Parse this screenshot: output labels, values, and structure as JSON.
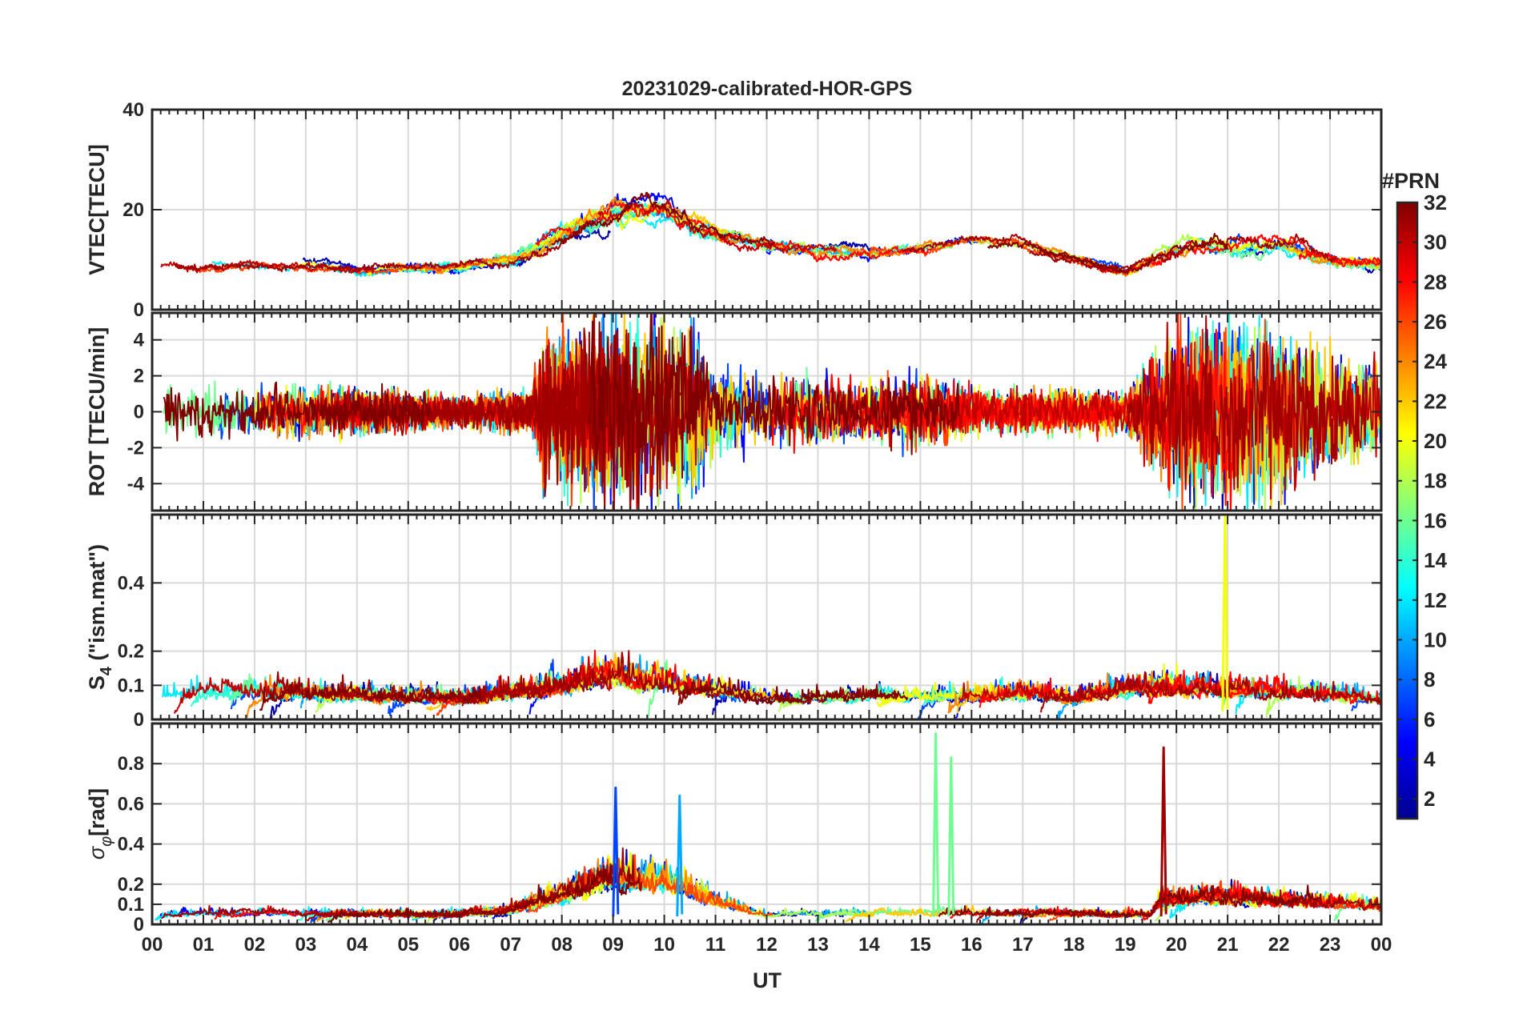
{
  "chart_data": {
    "type": "line",
    "title": "20231029-calibrated-HOR-GPS",
    "xlabel": "UT",
    "x_range_hours": [
      0,
      24
    ],
    "x_tick_labels": [
      "00",
      "01",
      "02",
      "03",
      "04",
      "05",
      "06",
      "07",
      "08",
      "09",
      "10",
      "11",
      "12",
      "13",
      "14",
      "15",
      "16",
      "17",
      "18",
      "19",
      "20",
      "21",
      "22",
      "23",
      "00"
    ],
    "grid": true,
    "colorbar": {
      "label": "#PRN",
      "range": [
        1,
        32
      ],
      "tick_values": [
        2,
        4,
        6,
        8,
        10,
        12,
        14,
        16,
        18,
        20,
        22,
        24,
        26,
        28,
        30,
        32
      ],
      "tick_labels": [
        "2",
        "4",
        "6",
        "8",
        "10",
        "12",
        "14",
        "16",
        "18",
        "20",
        "22",
        "24",
        "26",
        "28",
        "30",
        "32"
      ],
      "colormap": "jet",
      "location": "right"
    },
    "series_color_prns": [
      2,
      5,
      7,
      10,
      12,
      14,
      16,
      18,
      20,
      22,
      24,
      26,
      28,
      30,
      31,
      32
    ],
    "panels": [
      {
        "id": "vtec",
        "ylabel": "VTEC[TECU]",
        "ylim": [
          0,
          40
        ],
        "yticks": [
          0,
          20,
          40
        ],
        "ytick_labels": [
          "0",
          "20",
          "40"
        ],
        "activity_profile": {
          "hours": [
            0,
            2,
            4,
            6,
            7,
            8,
            9,
            10,
            11,
            12,
            13,
            14,
            15,
            16,
            17,
            18,
            19,
            20,
            21,
            22,
            23,
            24
          ],
          "mean": [
            8.5,
            9,
            8,
            8.5,
            10,
            15,
            19,
            20,
            15,
            13,
            12,
            11,
            12.5,
            14,
            13,
            10,
            8,
            12,
            13,
            13,
            10,
            9
          ],
          "spread": [
            3,
            3,
            3,
            3,
            4,
            7,
            9,
            9,
            7,
            5,
            5,
            4,
            4,
            4,
            4,
            3,
            4,
            7,
            8,
            8,
            5,
            4
          ]
        }
      },
      {
        "id": "rot",
        "ylabel": "ROT [TECU/min]",
        "ylim": [
          -5.5,
          5.5
        ],
        "yticks": [
          -4,
          -2,
          0,
          2,
          4
        ],
        "ytick_labels": [
          "-4",
          "-2",
          "0",
          "2",
          "4"
        ],
        "activity_profile": {
          "hours": [
            0,
            4,
            6,
            7.4,
            7.6,
            9,
            10.6,
            11,
            13,
            14,
            15,
            16,
            19,
            20,
            21,
            22,
            24
          ],
          "amplitude": [
            1.8,
            1.5,
            1.0,
            1.4,
            4.5,
            6,
            5.5,
            2.5,
            2.2,
            1.8,
            2.5,
            1.5,
            1.3,
            5,
            6,
            5,
            3
          ]
        }
      },
      {
        "id": "s4",
        "ylabel": "S4 (\"ism.mat\")",
        "ylabel_main": "S",
        "ylabel_subscript": "4",
        "ylabel_suffix": " (\"ism.mat\")",
        "ylim": [
          0,
          0.6
        ],
        "yticks": [
          0,
          0.1,
          0.2,
          0.4
        ],
        "ytick_labels": [
          "0",
          "0.1",
          "0.2",
          "0.4"
        ],
        "peak": {
          "hour": 20.95,
          "value": 0.6,
          "prn": 20
        },
        "activity_profile": {
          "hours": [
            0,
            2,
            4,
            6,
            8,
            9,
            10,
            11,
            12,
            16,
            17,
            18,
            19,
            20,
            21,
            22,
            24
          ],
          "level": [
            0.07,
            0.07,
            0.06,
            0.05,
            0.08,
            0.11,
            0.09,
            0.07,
            0.05,
            0.06,
            0.07,
            0.05,
            0.08,
            0.08,
            0.07,
            0.07,
            0.05
          ]
        }
      },
      {
        "id": "sigma_phi",
        "ylabel": "σφ[rad]",
        "ylabel_main": "σ",
        "ylabel_subscript": "φ",
        "ylabel_suffix": "[rad]",
        "ylim": [
          0,
          1.0
        ],
        "yticks": [
          0,
          0.1,
          0.2,
          0.4,
          0.6,
          0.8
        ],
        "ytick_labels": [
          "0",
          "0.1",
          "0.2",
          "0.4",
          "0.6",
          "0.8"
        ],
        "peaks": [
          {
            "hour": 9.05,
            "value": 0.68,
            "prn": 7
          },
          {
            "hour": 10.3,
            "value": 0.64,
            "prn": 10
          },
          {
            "hour": 15.3,
            "value": 0.95,
            "prn": 16
          },
          {
            "hour": 15.6,
            "value": 0.83,
            "prn": 16
          },
          {
            "hour": 19.75,
            "value": 0.88,
            "prn": 31
          }
        ],
        "activity_profile": {
          "hours": [
            0,
            6,
            7,
            8,
            9,
            10,
            11,
            11.6,
            12,
            15,
            16,
            19.5,
            19.7,
            21,
            22,
            24
          ],
          "level": [
            0.05,
            0.04,
            0.06,
            0.12,
            0.2,
            0.18,
            0.1,
            0.06,
            0.04,
            0.05,
            0.05,
            0.04,
            0.1,
            0.12,
            0.1,
            0.08
          ]
        }
      }
    ]
  }
}
